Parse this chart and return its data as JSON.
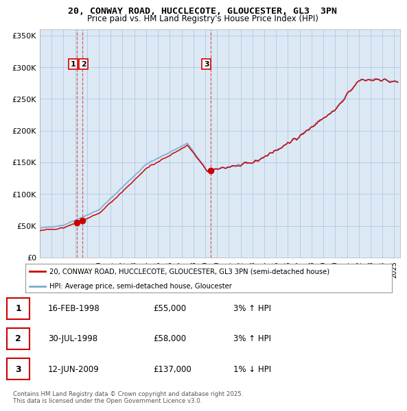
{
  "title": "20, CONWAY ROAD, HUCCLECOTE, GLOUCESTER, GL3  3PN",
  "subtitle": "Price paid vs. HM Land Registry's House Price Index (HPI)",
  "background_color": "#ffffff",
  "plot_bg_color": "#dce9f5",
  "grid_color": "#b0c8e0",
  "line_color_hpi": "#7aaad0",
  "line_color_price": "#cc0000",
  "ytick_labels": [
    "£0",
    "£50K",
    "£100K",
    "£150K",
    "£200K",
    "£250K",
    "£300K",
    "£350K"
  ],
  "ytick_values": [
    0,
    50000,
    100000,
    150000,
    200000,
    250000,
    300000,
    350000
  ],
  "sale_dates": [
    1998.12,
    1998.58,
    2009.45
  ],
  "sale_prices": [
    55000,
    58000,
    137000
  ],
  "sale_labels": [
    "1",
    "2",
    "3"
  ],
  "legend_entries": [
    "20, CONWAY ROAD, HUCCLECOTE, GLOUCESTER, GL3 3PN (semi-detached house)",
    "HPI: Average price, semi-detached house, Gloucester"
  ],
  "table_rows": [
    [
      "1",
      "16-FEB-1998",
      "£55,000",
      "3% ↑ HPI"
    ],
    [
      "2",
      "30-JUL-1998",
      "£58,000",
      "3% ↑ HPI"
    ],
    [
      "3",
      "12-JUN-2009",
      "£137,000",
      "1% ↓ HPI"
    ]
  ],
  "footnote": "Contains HM Land Registry data © Crown copyright and database right 2025.\nThis data is licensed under the Open Government Licence v3.0.",
  "xmin": 1995.0,
  "xmax": 2025.5,
  "ymin": 0,
  "ymax": 360000
}
